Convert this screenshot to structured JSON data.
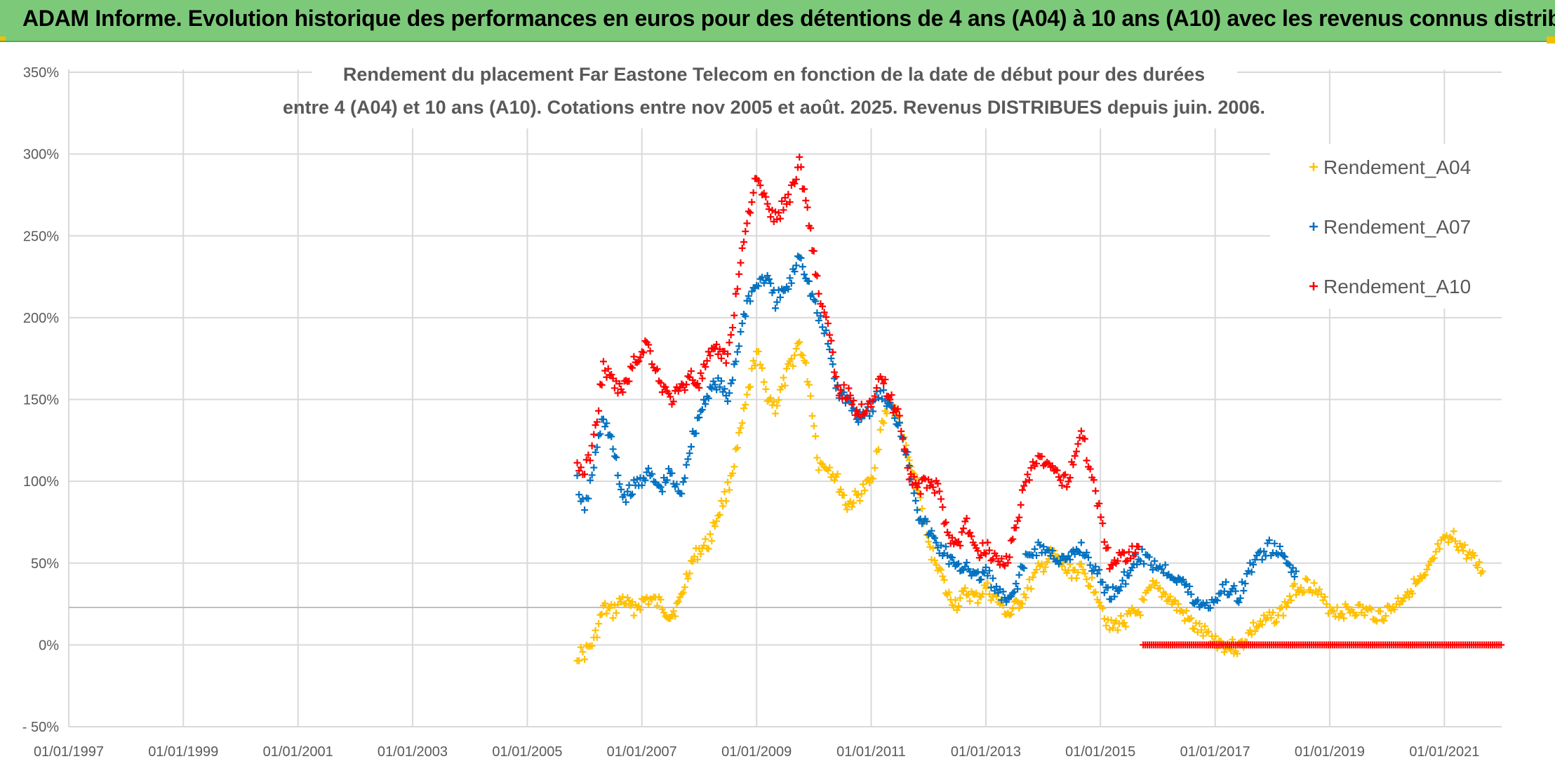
{
  "banner": {
    "title": "ADAM Informe. Evolution historique des performances en euros pour des détentions de 4 ans (A04) à 10 ans (A10) avec les revenus connus distribués"
  },
  "colors": {
    "banner_bg": "#7dc97a",
    "A04": "#ffc000",
    "A07": "#0070c0",
    "A10": "#ff0000",
    "grid": "#d9d9d9",
    "text": "#595959"
  },
  "chart_data": {
    "type": "scatter",
    "title_lines": [
      "Rendement du placement Far Eastone Telecom  en fonction de la date de début pour des durées",
      "entre 4 (A04) et 10 ans (A10). Cotations entre nov 2005 et août. 2025. Revenus DISTRIBUES depuis juin. 2006."
    ],
    "xlabel": "",
    "ylabel": "",
    "x_tick_labels": [
      "01/01/1997",
      "01/01/1999",
      "01/01/2001",
      "01/01/2003",
      "01/01/2005",
      "01/01/2007",
      "01/01/2009",
      "01/01/2011",
      "01/01/2013",
      "01/01/2015",
      "01/01/2017",
      "01/01/2019",
      "01/01/2021"
    ],
    "y_tick_labels": [
      "- 50%",
      "0%",
      "50%",
      "100%",
      "150%",
      "200%",
      "250%",
      "300%",
      "350%"
    ],
    "ylim": [
      -0.5,
      3.5
    ],
    "xlim": [
      "1997-01-01",
      "2022-01-01"
    ],
    "grid": true,
    "legend_position": "top-right",
    "marker": "+",
    "series": [
      {
        "name": "Rendement_A04",
        "color": "#ffc000",
        "points": [
          [
            "2005-11-15",
            -0.06
          ],
          [
            "2006-01-01",
            -0.05
          ],
          [
            "2006-03-01",
            0.02
          ],
          [
            "2006-05-01",
            0.22
          ],
          [
            "2006-07-01",
            0.2
          ],
          [
            "2006-09-01",
            0.28
          ],
          [
            "2006-11-01",
            0.22
          ],
          [
            "2007-02-01",
            0.28
          ],
          [
            "2007-05-01",
            0.25
          ],
          [
            "2007-07-01",
            0.18
          ],
          [
            "2007-09-01",
            0.26
          ],
          [
            "2007-11-01",
            0.48
          ],
          [
            "2008-01-01",
            0.58
          ],
          [
            "2008-03-01",
            0.62
          ],
          [
            "2008-05-01",
            0.8
          ],
          [
            "2008-07-01",
            0.95
          ],
          [
            "2008-09-01",
            1.2
          ],
          [
            "2008-11-01",
            1.5
          ],
          [
            "2009-01-01",
            1.8
          ],
          [
            "2009-03-01",
            1.55
          ],
          [
            "2009-05-01",
            1.45
          ],
          [
            "2009-08-01",
            1.7
          ],
          [
            "2009-10-01",
            1.85
          ],
          [
            "2009-12-01",
            1.6
          ],
          [
            "2010-02-01",
            1.1
          ],
          [
            "2010-04-01",
            1.1
          ],
          [
            "2010-06-01",
            1.0
          ],
          [
            "2010-08-01",
            0.85
          ],
          [
            "2010-10-01",
            0.9
          ],
          [
            "2011-01-01",
            1.0
          ],
          [
            "2011-03-01",
            1.3
          ],
          [
            "2011-05-01",
            1.5
          ],
          [
            "2011-07-01",
            1.35
          ],
          [
            "2011-09-01",
            1.1
          ],
          [
            "2011-11-01",
            0.95
          ],
          [
            "2012-01-01",
            0.6
          ],
          [
            "2012-03-01",
            0.5
          ],
          [
            "2012-05-01",
            0.3
          ],
          [
            "2012-07-01",
            0.25
          ],
          [
            "2012-09-01",
            0.32
          ],
          [
            "2012-11-01",
            0.28
          ],
          [
            "2013-01-01",
            0.35
          ],
          [
            "2013-04-01",
            0.25
          ],
          [
            "2013-06-01",
            0.18
          ],
          [
            "2013-09-01",
            0.3
          ],
          [
            "2013-12-01",
            0.45
          ],
          [
            "2014-03-01",
            0.55
          ],
          [
            "2014-06-01",
            0.45
          ],
          [
            "2014-09-01",
            0.45
          ],
          [
            "2014-12-01",
            0.35
          ],
          [
            "2015-03-01",
            0.1
          ],
          [
            "2015-06-01",
            0.15
          ],
          [
            "2015-09-01",
            0.2
          ],
          [
            "2015-12-01",
            0.35
          ],
          [
            "2016-03-01",
            0.3
          ],
          [
            "2016-06-01",
            0.2
          ],
          [
            "2016-09-01",
            0.1
          ],
          [
            "2016-12-01",
            0.05
          ],
          [
            "2017-03-01",
            0.0
          ],
          [
            "2017-06-01",
            -0.02
          ],
          [
            "2017-09-01",
            0.1
          ],
          [
            "2017-12-01",
            0.15
          ],
          [
            "2018-03-01",
            0.2
          ],
          [
            "2018-06-01",
            0.35
          ],
          [
            "2018-09-01",
            0.38
          ],
          [
            "2018-12-01",
            0.25
          ],
          [
            "2019-03-01",
            0.2
          ],
          [
            "2019-06-01",
            0.22
          ],
          [
            "2019-09-01",
            0.2
          ],
          [
            "2019-12-01",
            0.18
          ],
          [
            "2020-03-01",
            0.25
          ],
          [
            "2020-06-01",
            0.35
          ],
          [
            "2020-09-01",
            0.4
          ],
          [
            "2020-12-01",
            0.6
          ],
          [
            "2021-03-01",
            0.65
          ],
          [
            "2021-06-01",
            0.55
          ],
          [
            "2021-09-01",
            0.45
          ]
        ]
      },
      {
        "name": "Rendement_A07",
        "color": "#0070c0",
        "points": [
          [
            "2005-11-15",
            1.0
          ],
          [
            "2006-01-01",
            0.8
          ],
          [
            "2006-03-01",
            1.1
          ],
          [
            "2006-05-01",
            1.4
          ],
          [
            "2006-07-01",
            1.2
          ],
          [
            "2006-09-01",
            0.9
          ],
          [
            "2006-11-01",
            0.95
          ],
          [
            "2007-02-01",
            1.05
          ],
          [
            "2007-05-01",
            0.95
          ],
          [
            "2007-07-01",
            1.05
          ],
          [
            "2007-09-01",
            0.9
          ],
          [
            "2007-11-01",
            1.2
          ],
          [
            "2008-01-01",
            1.4
          ],
          [
            "2008-03-01",
            1.55
          ],
          [
            "2008-05-01",
            1.6
          ],
          [
            "2008-07-01",
            1.5
          ],
          [
            "2008-09-01",
            1.8
          ],
          [
            "2008-11-01",
            2.1
          ],
          [
            "2009-01-01",
            2.2
          ],
          [
            "2009-03-01",
            2.25
          ],
          [
            "2009-05-01",
            2.1
          ],
          [
            "2009-08-01",
            2.2
          ],
          [
            "2009-10-01",
            2.4
          ],
          [
            "2009-12-01",
            2.2
          ],
          [
            "2010-02-01",
            2.0
          ],
          [
            "2010-04-01",
            1.85
          ],
          [
            "2010-06-01",
            1.55
          ],
          [
            "2010-08-01",
            1.5
          ],
          [
            "2010-10-01",
            1.4
          ],
          [
            "2011-01-01",
            1.45
          ],
          [
            "2011-03-01",
            1.55
          ],
          [
            "2011-05-01",
            1.45
          ],
          [
            "2011-07-01",
            1.35
          ],
          [
            "2011-09-01",
            1.1
          ],
          [
            "2011-11-01",
            0.8
          ],
          [
            "2012-01-01",
            0.7
          ],
          [
            "2012-03-01",
            0.6
          ],
          [
            "2012-05-01",
            0.55
          ],
          [
            "2012-07-01",
            0.45
          ],
          [
            "2012-09-01",
            0.5
          ],
          [
            "2012-11-01",
            0.4
          ],
          [
            "2013-01-01",
            0.45
          ],
          [
            "2013-04-01",
            0.3
          ],
          [
            "2013-06-01",
            0.25
          ],
          [
            "2013-09-01",
            0.5
          ],
          [
            "2013-12-01",
            0.6
          ],
          [
            "2014-03-01",
            0.55
          ],
          [
            "2014-06-01",
            0.5
          ],
          [
            "2014-09-01",
            0.6
          ],
          [
            "2014-12-01",
            0.45
          ],
          [
            "2015-03-01",
            0.3
          ],
          [
            "2015-06-01",
            0.4
          ],
          [
            "2015-09-01",
            0.55
          ],
          [
            "2015-12-01",
            0.5
          ],
          [
            "2016-03-01",
            0.45
          ],
          [
            "2016-06-01",
            0.4
          ],
          [
            "2016-09-01",
            0.25
          ],
          [
            "2016-12-01",
            0.25
          ],
          [
            "2017-03-01",
            0.35
          ],
          [
            "2017-06-01",
            0.3
          ],
          [
            "2017-09-01",
            0.5
          ],
          [
            "2017-12-01",
            0.6
          ],
          [
            "2018-03-01",
            0.55
          ],
          [
            "2018-06-01",
            0.45
          ]
        ]
      },
      {
        "name": "Rendement_A10",
        "color": "#ff0000",
        "points": [
          [
            "2005-11-15",
            1.1
          ],
          [
            "2006-01-01",
            1.05
          ],
          [
            "2006-03-01",
            1.25
          ],
          [
            "2006-05-01",
            1.7
          ],
          [
            "2006-07-01",
            1.6
          ],
          [
            "2006-09-01",
            1.55
          ],
          [
            "2006-11-01",
            1.7
          ],
          [
            "2007-02-01",
            1.85
          ],
          [
            "2007-05-01",
            1.6
          ],
          [
            "2007-07-01",
            1.5
          ],
          [
            "2007-09-01",
            1.55
          ],
          [
            "2007-11-01",
            1.65
          ],
          [
            "2008-01-01",
            1.6
          ],
          [
            "2008-03-01",
            1.75
          ],
          [
            "2008-05-01",
            1.8
          ],
          [
            "2008-07-01",
            1.75
          ],
          [
            "2008-09-01",
            2.2
          ],
          [
            "2008-11-01",
            2.6
          ],
          [
            "2009-01-01",
            2.85
          ],
          [
            "2009-03-01",
            2.7
          ],
          [
            "2009-05-01",
            2.6
          ],
          [
            "2009-08-01",
            2.75
          ],
          [
            "2009-10-01",
            2.95
          ],
          [
            "2009-12-01",
            2.6
          ],
          [
            "2010-02-01",
            2.15
          ],
          [
            "2010-04-01",
            1.95
          ],
          [
            "2010-06-01",
            1.55
          ],
          [
            "2010-08-01",
            1.55
          ],
          [
            "2010-10-01",
            1.4
          ],
          [
            "2011-01-01",
            1.5
          ],
          [
            "2011-03-01",
            1.65
          ],
          [
            "2011-05-01",
            1.5
          ],
          [
            "2011-07-01",
            1.4
          ],
          [
            "2011-09-01",
            1.05
          ],
          [
            "2011-11-01",
            0.95
          ],
          [
            "2012-01-01",
            1.0
          ],
          [
            "2012-03-01",
            0.95
          ],
          [
            "2012-05-01",
            0.7
          ],
          [
            "2012-07-01",
            0.6
          ],
          [
            "2012-09-01",
            0.75
          ],
          [
            "2012-11-01",
            0.55
          ],
          [
            "2013-01-01",
            0.6
          ],
          [
            "2013-04-01",
            0.5
          ],
          [
            "2013-06-01",
            0.55
          ],
          [
            "2013-09-01",
            0.95
          ],
          [
            "2013-12-01",
            1.15
          ],
          [
            "2014-03-01",
            1.05
          ],
          [
            "2014-06-01",
            1.0
          ],
          [
            "2014-09-01",
            1.3
          ],
          [
            "2014-12-01",
            0.95
          ],
          [
            "2015-03-01",
            0.5
          ],
          [
            "2015-06-01",
            0.55
          ],
          [
            "2015-09-01",
            0.6
          ]
        ]
      },
      {
        "name": "Rendement_A10 (0%)",
        "color": "#ff0000",
        "flat_segment": {
          "from": "2015-10-01",
          "to": "2022-01-01",
          "value": 0.0
        }
      }
    ]
  }
}
